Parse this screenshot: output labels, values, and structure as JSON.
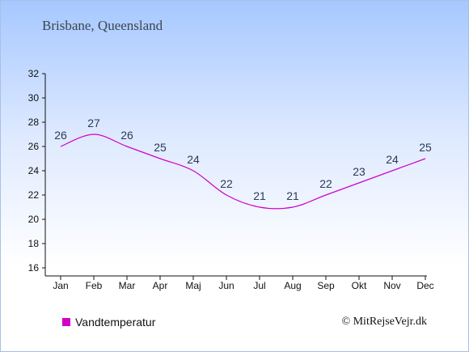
{
  "header": {
    "title": "Brisbane, Queensland"
  },
  "legend": {
    "label": "Vandtemperatur",
    "color": "#d000c8"
  },
  "footer": {
    "copyright": "© MitRejseVejr.dk"
  },
  "chart_data": {
    "type": "line",
    "categories": [
      "Jan",
      "Feb",
      "Mar",
      "Apr",
      "Maj",
      "Jun",
      "Jul",
      "Aug",
      "Sep",
      "Okt",
      "Nov",
      "Dec"
    ],
    "series": [
      {
        "name": "Vandtemperatur",
        "color": "#d000c8",
        "values": [
          26,
          27,
          26,
          25,
          24,
          22,
          21,
          21,
          22,
          23,
          24,
          25
        ]
      }
    ],
    "yticks": [
      16,
      18,
      20,
      22,
      24,
      26,
      28,
      30,
      32
    ],
    "ylim": [
      16,
      32
    ],
    "grid": false,
    "legend_position": "bottom-left"
  }
}
